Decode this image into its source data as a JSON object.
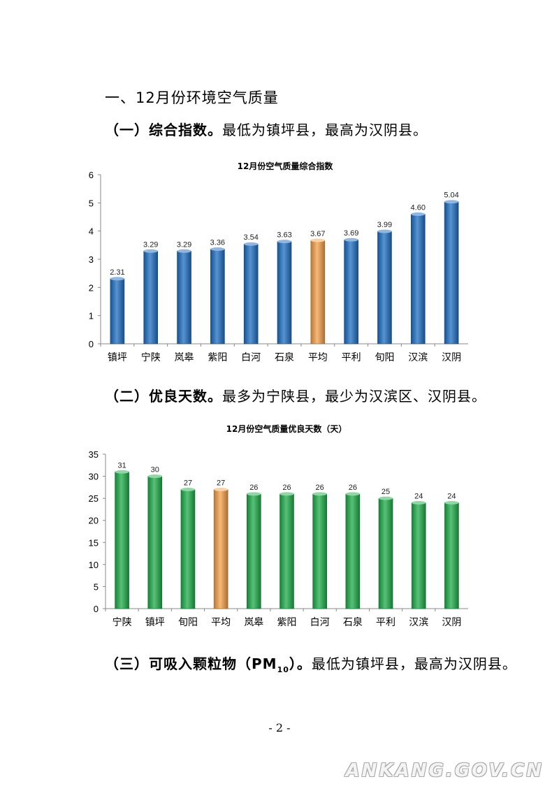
{
  "section_title": "一、12月份环境空气质量",
  "paragraphs": [
    {
      "head": "（一）综合指数。",
      "body": "最低为镇坪县，最高为汉阴县。"
    },
    {
      "head": "（二）优良天数。",
      "body": "最多为宁陕县，最少为汉滨区、汉阴县。"
    },
    {
      "head_a": "（三）可吸入颗粒物（PM",
      "head_sub": "10",
      "head_b": "）。",
      "body": "最低为镇坪县，最高为汉阴县。"
    }
  ],
  "page_number": "- 2 -",
  "watermark": "ANKANG.GOV.CN",
  "chart_data": [
    {
      "type": "bar",
      "title": "12月份空气质量综合指数",
      "categories": [
        "镇坪",
        "宁陕",
        "岚皋",
        "紫阳",
        "白河",
        "石泉",
        "平均",
        "平利",
        "旬阳",
        "汉滨",
        "汉阴"
      ],
      "values": [
        2.31,
        3.29,
        3.29,
        3.36,
        3.54,
        3.63,
        3.67,
        3.69,
        3.99,
        4.6,
        5.04
      ],
      "labels": [
        "2.31",
        "3.29",
        "3.29",
        "3.36",
        "3.54",
        "3.63",
        "3.67",
        "3.69",
        "3.99",
        "4.60",
        "5.04"
      ],
      "ylim": [
        0,
        6
      ],
      "yticks": [
        0,
        1,
        2,
        3,
        4,
        5,
        6
      ],
      "grid": false,
      "bar_color": "#1f6fc4",
      "highlight_category": "平均",
      "highlight_color": "#f5a04a"
    },
    {
      "type": "bar",
      "title": "12月份空气质量优良天数（天）",
      "categories": [
        "宁陕",
        "镇坪",
        "旬阳",
        "平均",
        "岚皋",
        "紫阳",
        "白河",
        "石泉",
        "平利",
        "汉滨",
        "汉阴"
      ],
      "values": [
        31,
        30,
        27,
        27,
        26,
        26,
        26,
        26,
        25,
        24,
        24
      ],
      "labels": [
        "31",
        "30",
        "27",
        "27",
        "26",
        "26",
        "26",
        "26",
        "25",
        "24",
        "24"
      ],
      "ylim": [
        0,
        35
      ],
      "yticks": [
        0,
        5,
        10,
        15,
        20,
        25,
        30,
        35
      ],
      "grid": false,
      "bar_color": "#1fae4a",
      "highlight_category": "平均",
      "highlight_color": "#f5a04a"
    }
  ]
}
